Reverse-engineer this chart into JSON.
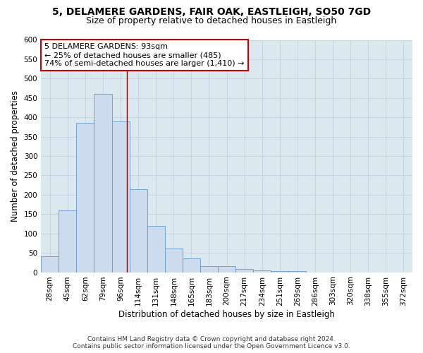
{
  "title_line1": "5, DELAMERE GARDENS, FAIR OAK, EASTLEIGH, SO50 7GD",
  "title_line2": "Size of property relative to detached houses in Eastleigh",
  "xlabel": "Distribution of detached houses by size in Eastleigh",
  "ylabel": "Number of detached properties",
  "categories": [
    "28sqm",
    "45sqm",
    "62sqm",
    "79sqm",
    "96sqm",
    "114sqm",
    "131sqm",
    "148sqm",
    "165sqm",
    "183sqm",
    "200sqm",
    "217sqm",
    "234sqm",
    "251sqm",
    "269sqm",
    "286sqm",
    "303sqm",
    "320sqm",
    "338sqm",
    "355sqm",
    "372sqm"
  ],
  "values": [
    42,
    160,
    385,
    460,
    390,
    215,
    120,
    62,
    35,
    15,
    15,
    8,
    5,
    3,
    2,
    0,
    0,
    0,
    0,
    0,
    0
  ],
  "bar_color": "#ccdcee",
  "bar_edge_color": "#6699cc",
  "grid_color": "#c8d4e0",
  "background_color": "#dce8f0",
  "vline_color": "#880000",
  "vline_x": 4.35,
  "annotation_text": "5 DELAMERE GARDENS: 93sqm\n← 25% of detached houses are smaller (485)\n74% of semi-detached houses are larger (1,410) →",
  "annotation_box_color": "#ffffff",
  "annotation_box_edge": "#cc0000",
  "ylim": [
    0,
    600
  ],
  "yticks": [
    0,
    50,
    100,
    150,
    200,
    250,
    300,
    350,
    400,
    450,
    500,
    550,
    600
  ],
  "footer_line1": "Contains HM Land Registry data © Crown copyright and database right 2024.",
  "footer_line2": "Contains public sector information licensed under the Open Government Licence v3.0.",
  "title_fontsize": 10,
  "subtitle_fontsize": 9,
  "axis_label_fontsize": 8.5,
  "tick_fontsize": 7.5,
  "annotation_fontsize": 8,
  "footer_fontsize": 6.5
}
